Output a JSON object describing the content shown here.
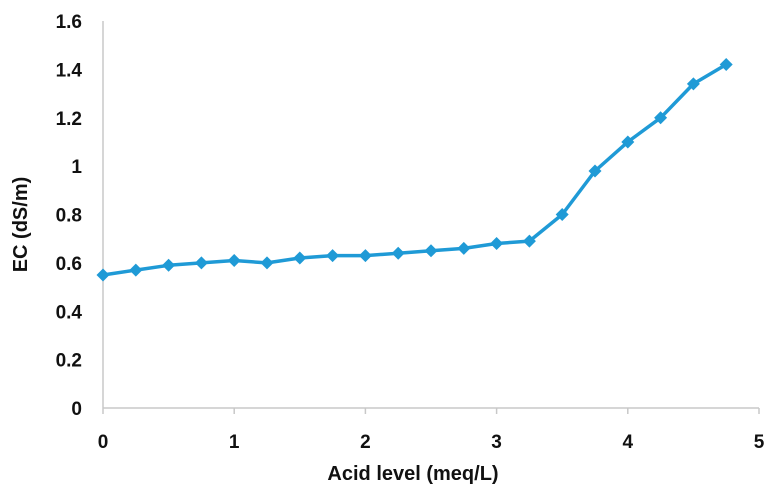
{
  "chart_data": {
    "type": "line",
    "title": "",
    "xlabel": "Acid level (meq/L)",
    "ylabel": "EC (dS/m)",
    "xlim": [
      0,
      5
    ],
    "ylim": [
      0,
      1.6
    ],
    "xticks": [
      "0",
      "1",
      "2",
      "3",
      "4",
      "5"
    ],
    "yticks": [
      "0",
      "0.2",
      "0.4",
      "0.6",
      "0.8",
      "1",
      "1.2",
      "1.4",
      "1.6"
    ],
    "grid": false,
    "legend": "none",
    "series": [
      {
        "color": "#1f9ad6",
        "marker": "diamond",
        "x": [
          0,
          0.25,
          0.5,
          0.75,
          1,
          1.25,
          1.5,
          1.75,
          2,
          2.25,
          2.5,
          2.75,
          3,
          3.25,
          3.5,
          3.75,
          4,
          4.25,
          4.5,
          4.75
        ],
        "y": [
          0.55,
          0.57,
          0.59,
          0.6,
          0.61,
          0.6,
          0.62,
          0.63,
          0.63,
          0.64,
          0.65,
          0.66,
          0.68,
          0.69,
          0.8,
          0.98,
          1.1,
          1.2,
          1.34,
          1.42
        ]
      }
    ]
  }
}
